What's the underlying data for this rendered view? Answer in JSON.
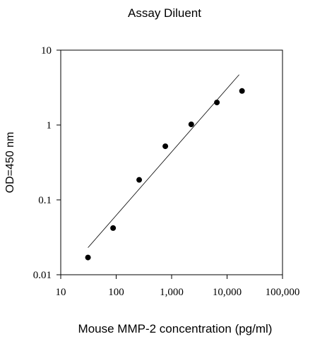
{
  "chart_data": {
    "type": "scatter",
    "title": "Assay Diluent",
    "xlabel": "Mouse MMP-2 concentration (pg/ml)",
    "ylabel": "OD=450 nm",
    "x_scale": "log",
    "y_scale": "log",
    "xlim": [
      10,
      100000
    ],
    "ylim": [
      0.01,
      10
    ],
    "x_ticks": [
      10,
      100,
      1000,
      10000,
      100000
    ],
    "x_tick_labels": [
      "10",
      "100",
      "1,000",
      "10,000",
      "100,000"
    ],
    "y_ticks": [
      0.01,
      0.1,
      1,
      10
    ],
    "y_tick_labels": [
      "0.01",
      "0.1",
      "1",
      "10"
    ],
    "grid": false,
    "points": [
      {
        "x": 31,
        "y": 0.017
      },
      {
        "x": 88,
        "y": 0.042
      },
      {
        "x": 260,
        "y": 0.185
      },
      {
        "x": 770,
        "y": 0.52
      },
      {
        "x": 2260,
        "y": 1.02
      },
      {
        "x": 6560,
        "y": 2.0
      },
      {
        "x": 18600,
        "y": 2.85
      }
    ],
    "fit_line": {
      "x": [
        31,
        16500
      ],
      "y": [
        0.023,
        4.7
      ]
    },
    "colors": {
      "points": "#000000",
      "line": "#000000",
      "axes": "#000000"
    }
  }
}
